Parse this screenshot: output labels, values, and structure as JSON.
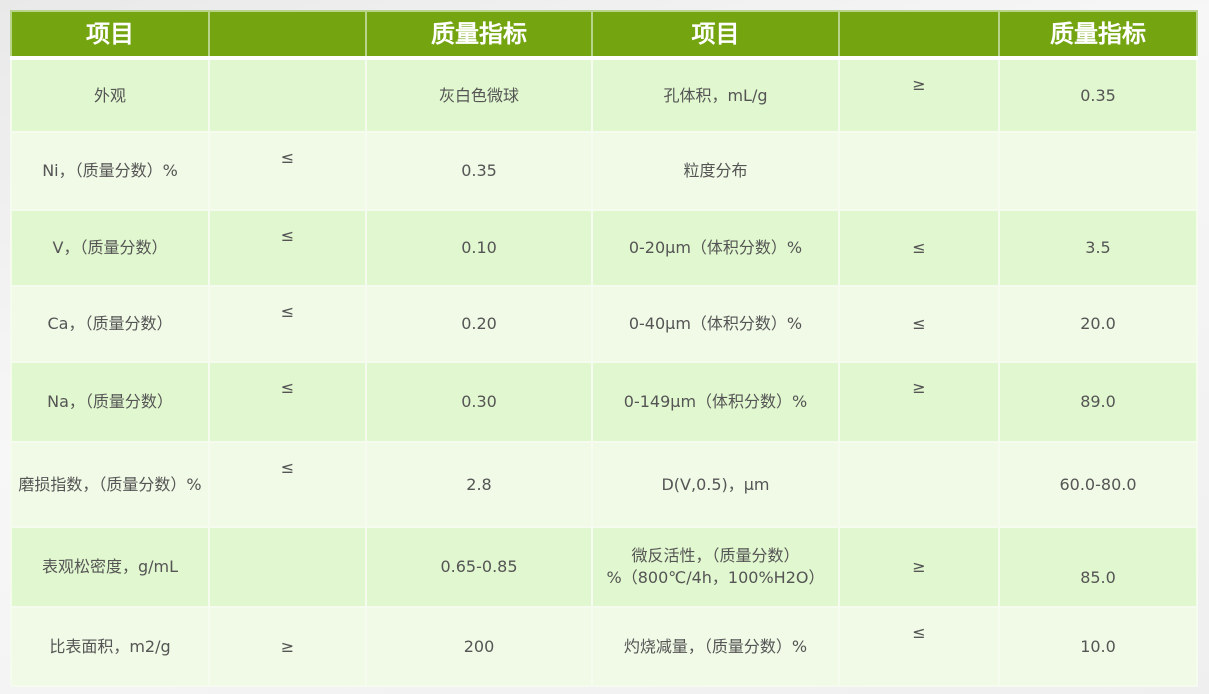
{
  "header": [
    "项目",
    "",
    "质量指标",
    "项目",
    "",
    "质量指标"
  ],
  "rows": [
    [
      "外观",
      "",
      "灰白色微球",
      "孔体积，mL/g",
      "≥",
      "0.35"
    ],
    [
      "Ni，（质量分数）%",
      "≤",
      "0.35",
      "粒度分布",
      "",
      ""
    ],
    [
      "V，（质量分数）",
      "≤",
      "0.10",
      "0-20μm（体积分数）%",
      "≤",
      "3.5"
    ],
    [
      "Ca，（质量分数）",
      "≤",
      "0.20",
      "0-40μm（体积分数）%",
      "≤",
      "20.0"
    ],
    [
      "Na，（质量分数）",
      "≤",
      "0.30",
      "0-149μm（体积分数）%",
      "≥",
      "89.0"
    ],
    [
      "磨损指数，（质量分数）%",
      "≤",
      "2.8",
      "D(V,0.5)，μm",
      "",
      "60.0-80.0"
    ],
    [
      "表观松密度，g/mL",
      "",
      "0.65-0.85",
      "微反活性，（质量分数）%（800℃/4h，100%H2O）",
      "≥",
      "85.0"
    ],
    [
      "比表面积，m2/g",
      "≥",
      "200",
      "灼烧减量，（质量分数）%",
      "≤",
      "10.0"
    ]
  ],
  "colors": {
    "header": "#74a511",
    "row_odd": "#e1f7cf",
    "row_even": "#f0fae6"
  }
}
